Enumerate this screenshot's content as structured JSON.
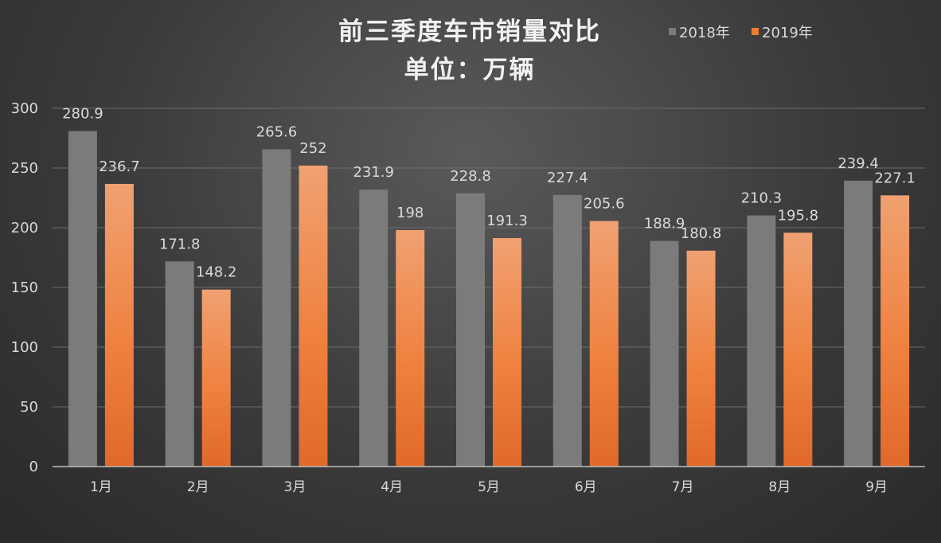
{
  "chart_data": {
    "type": "bar",
    "title": "前三季度车市销量对比",
    "subtitle": "单位：万辆",
    "categories": [
      "1月",
      "2月",
      "3月",
      "4月",
      "5月",
      "6月",
      "7月",
      "8月",
      "9月"
    ],
    "series": [
      {
        "name": "2018年",
        "values": [
          280.9,
          171.8,
          265.6,
          231.9,
          228.8,
          227.4,
          188.9,
          210.3,
          239.4
        ],
        "color": "#7b7b7b"
      },
      {
        "name": "2019年",
        "values": [
          236.7,
          148.2,
          252,
          198,
          191.3,
          205.6,
          180.8,
          195.8,
          227.1
        ],
        "color": "#ed7d31"
      }
    ],
    "ylim": [
      0,
      300
    ],
    "yticks": [
      0,
      50,
      100,
      150,
      200,
      250,
      300
    ],
    "grid": true,
    "legend_position": "top-right",
    "data_labels": true
  }
}
